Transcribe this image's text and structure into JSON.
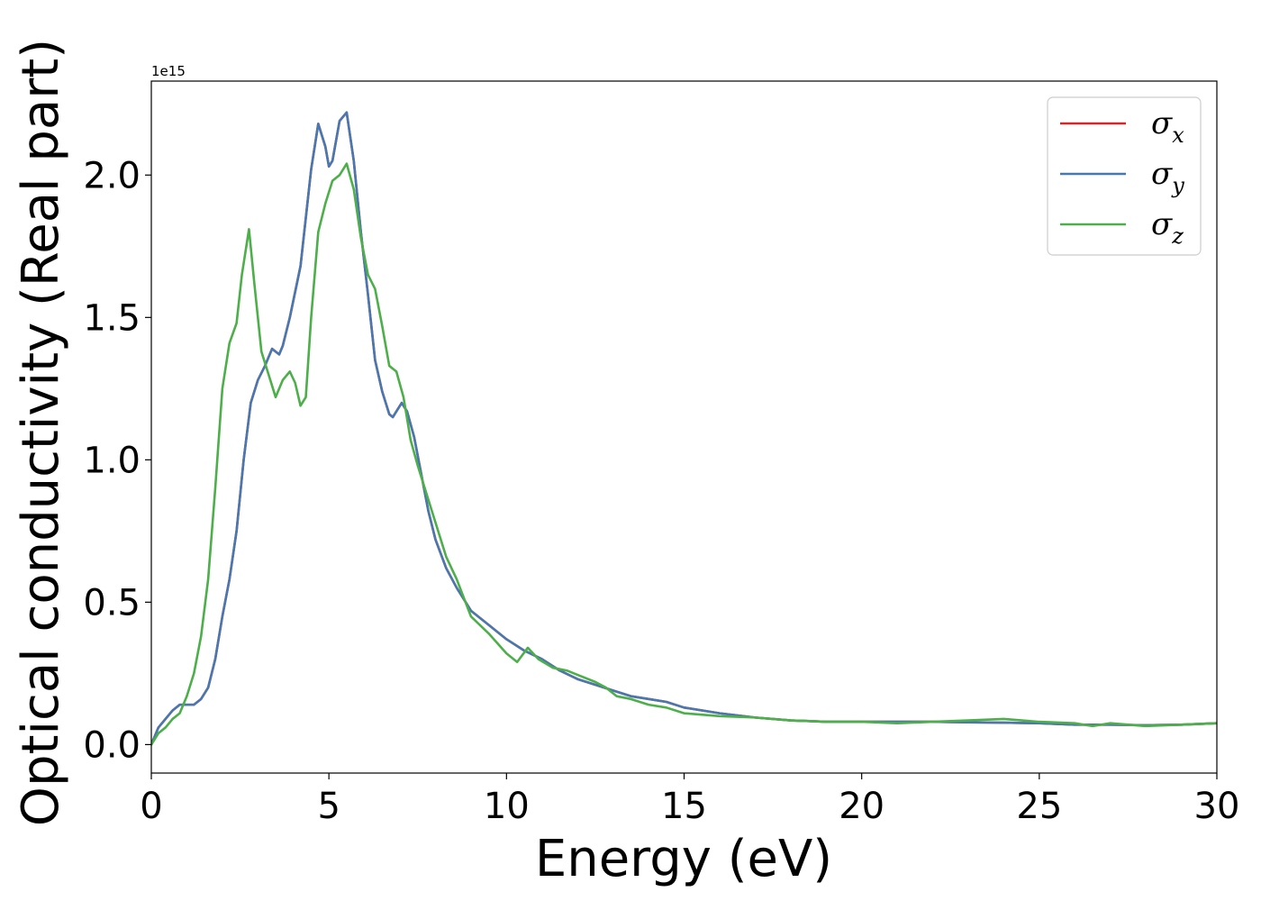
{
  "chart_data": {
    "type": "line",
    "title": "",
    "xlabel": "Energy (eV)",
    "ylabel": "Optical conductivity (Real part)",
    "y_offset_label": "1e15",
    "y_multiplier": 1000000000000000.0,
    "xlim": [
      0,
      30
    ],
    "ylim": [
      -0.1,
      2.33
    ],
    "xticks": [
      0,
      5,
      10,
      15,
      20,
      25,
      30
    ],
    "yticks": [
      0.0,
      0.5,
      1.0,
      1.5,
      2.0
    ],
    "xtick_labels": [
      "0",
      "5",
      "10",
      "15",
      "20",
      "25",
      "30"
    ],
    "ytick_labels": [
      "0.0",
      "0.5",
      "1.0",
      "1.5",
      "2.0"
    ],
    "grid": false,
    "legend_position": "top-right",
    "series": [
      {
        "name": "σx",
        "sub": "x",
        "color": "#d62728",
        "x": [
          0,
          0.2,
          0.4,
          0.6,
          0.8,
          1.0,
          1.2,
          1.4,
          1.6,
          1.8,
          2.0,
          2.2,
          2.4,
          2.6,
          2.8,
          3.0,
          3.2,
          3.4,
          3.5,
          3.6,
          3.7,
          3.9,
          4.2,
          4.5,
          4.7,
          4.9,
          5.0,
          5.1,
          5.3,
          5.5,
          5.7,
          5.9,
          6.1,
          6.3,
          6.5,
          6.7,
          6.8,
          6.9,
          7.05,
          7.2,
          7.4,
          7.6,
          7.8,
          8.0,
          8.3,
          8.6,
          9.0,
          9.5,
          10.0,
          10.5,
          11.0,
          11.5,
          12.0,
          12.5,
          13.0,
          13.5,
          14.0,
          14.5,
          15.0,
          16.0,
          17.0,
          18.0,
          19.0,
          20.0,
          21.0,
          22.0,
          23.0,
          24.0,
          25.0,
          26.0,
          27.0,
          28.0,
          29.0,
          30.0
        ],
        "values": [
          0.0,
          0.06,
          0.09,
          0.12,
          0.14,
          0.14,
          0.14,
          0.16,
          0.2,
          0.3,
          0.45,
          0.58,
          0.75,
          1.0,
          1.2,
          1.28,
          1.33,
          1.39,
          1.38,
          1.37,
          1.4,
          1.5,
          1.68,
          2.02,
          2.18,
          2.1,
          2.03,
          2.05,
          2.19,
          2.22,
          2.05,
          1.8,
          1.58,
          1.35,
          1.24,
          1.16,
          1.15,
          1.17,
          1.2,
          1.17,
          1.08,
          0.95,
          0.82,
          0.72,
          0.62,
          0.55,
          0.47,
          0.42,
          0.37,
          0.33,
          0.3,
          0.26,
          0.23,
          0.21,
          0.19,
          0.17,
          0.16,
          0.15,
          0.13,
          0.11,
          0.095,
          0.085,
          0.08,
          0.08,
          0.08,
          0.08,
          0.078,
          0.077,
          0.075,
          0.07,
          0.07,
          0.068,
          0.07,
          0.075
        ]
      },
      {
        "name": "σy",
        "sub": "y",
        "color": "#4878b0",
        "x": [
          0,
          0.2,
          0.4,
          0.6,
          0.8,
          1.0,
          1.2,
          1.4,
          1.6,
          1.8,
          2.0,
          2.2,
          2.4,
          2.6,
          2.8,
          3.0,
          3.2,
          3.4,
          3.5,
          3.6,
          3.7,
          3.9,
          4.2,
          4.5,
          4.7,
          4.9,
          5.0,
          5.1,
          5.3,
          5.5,
          5.7,
          5.9,
          6.1,
          6.3,
          6.5,
          6.7,
          6.8,
          6.9,
          7.05,
          7.2,
          7.4,
          7.6,
          7.8,
          8.0,
          8.3,
          8.6,
          9.0,
          9.5,
          10.0,
          10.5,
          11.0,
          11.5,
          12.0,
          12.5,
          13.0,
          13.5,
          14.0,
          14.5,
          15.0,
          16.0,
          17.0,
          18.0,
          19.0,
          20.0,
          21.0,
          22.0,
          23.0,
          24.0,
          25.0,
          26.0,
          27.0,
          28.0,
          29.0,
          30.0
        ],
        "values": [
          0.0,
          0.06,
          0.09,
          0.12,
          0.14,
          0.14,
          0.14,
          0.16,
          0.2,
          0.3,
          0.45,
          0.58,
          0.75,
          1.0,
          1.2,
          1.28,
          1.33,
          1.39,
          1.38,
          1.37,
          1.4,
          1.5,
          1.68,
          2.02,
          2.18,
          2.1,
          2.03,
          2.05,
          2.19,
          2.22,
          2.05,
          1.8,
          1.58,
          1.35,
          1.24,
          1.16,
          1.15,
          1.17,
          1.2,
          1.17,
          1.08,
          0.95,
          0.82,
          0.72,
          0.62,
          0.55,
          0.47,
          0.42,
          0.37,
          0.33,
          0.3,
          0.26,
          0.23,
          0.21,
          0.19,
          0.17,
          0.16,
          0.15,
          0.13,
          0.11,
          0.095,
          0.085,
          0.08,
          0.08,
          0.08,
          0.08,
          0.078,
          0.077,
          0.075,
          0.07,
          0.07,
          0.068,
          0.07,
          0.075
        ]
      },
      {
        "name": "σz",
        "sub": "z",
        "color": "#4daf4a",
        "x": [
          0,
          0.2,
          0.4,
          0.6,
          0.8,
          1.0,
          1.2,
          1.4,
          1.6,
          1.8,
          2.0,
          2.2,
          2.4,
          2.55,
          2.75,
          2.9,
          3.1,
          3.3,
          3.5,
          3.7,
          3.9,
          4.05,
          4.2,
          4.35,
          4.5,
          4.7,
          4.9,
          5.1,
          5.3,
          5.5,
          5.7,
          5.9,
          6.1,
          6.3,
          6.5,
          6.7,
          6.9,
          7.1,
          7.3,
          7.5,
          7.8,
          8.0,
          8.3,
          8.6,
          9.0,
          9.5,
          10.0,
          10.3,
          10.6,
          10.9,
          11.3,
          11.7,
          12.1,
          12.5,
          12.8,
          13.1,
          13.5,
          14.0,
          14.5,
          15.0,
          16.0,
          17.0,
          18.0,
          19.0,
          20.0,
          21.0,
          22.0,
          23.0,
          24.0,
          25.0,
          26.0,
          26.5,
          27.0,
          28.0,
          29.0,
          30.0
        ],
        "values": [
          0.0,
          0.04,
          0.06,
          0.09,
          0.11,
          0.17,
          0.25,
          0.38,
          0.58,
          0.9,
          1.25,
          1.41,
          1.48,
          1.65,
          1.81,
          1.62,
          1.38,
          1.3,
          1.22,
          1.28,
          1.31,
          1.27,
          1.19,
          1.22,
          1.5,
          1.8,
          1.9,
          1.98,
          2.0,
          2.04,
          1.95,
          1.78,
          1.65,
          1.6,
          1.47,
          1.33,
          1.31,
          1.22,
          1.07,
          0.98,
          0.86,
          0.78,
          0.66,
          0.58,
          0.45,
          0.39,
          0.32,
          0.29,
          0.34,
          0.3,
          0.27,
          0.26,
          0.24,
          0.22,
          0.2,
          0.17,
          0.16,
          0.14,
          0.13,
          0.11,
          0.1,
          0.095,
          0.085,
          0.08,
          0.08,
          0.075,
          0.08,
          0.085,
          0.09,
          0.08,
          0.075,
          0.065,
          0.075,
          0.065,
          0.07,
          0.075
        ]
      }
    ]
  }
}
